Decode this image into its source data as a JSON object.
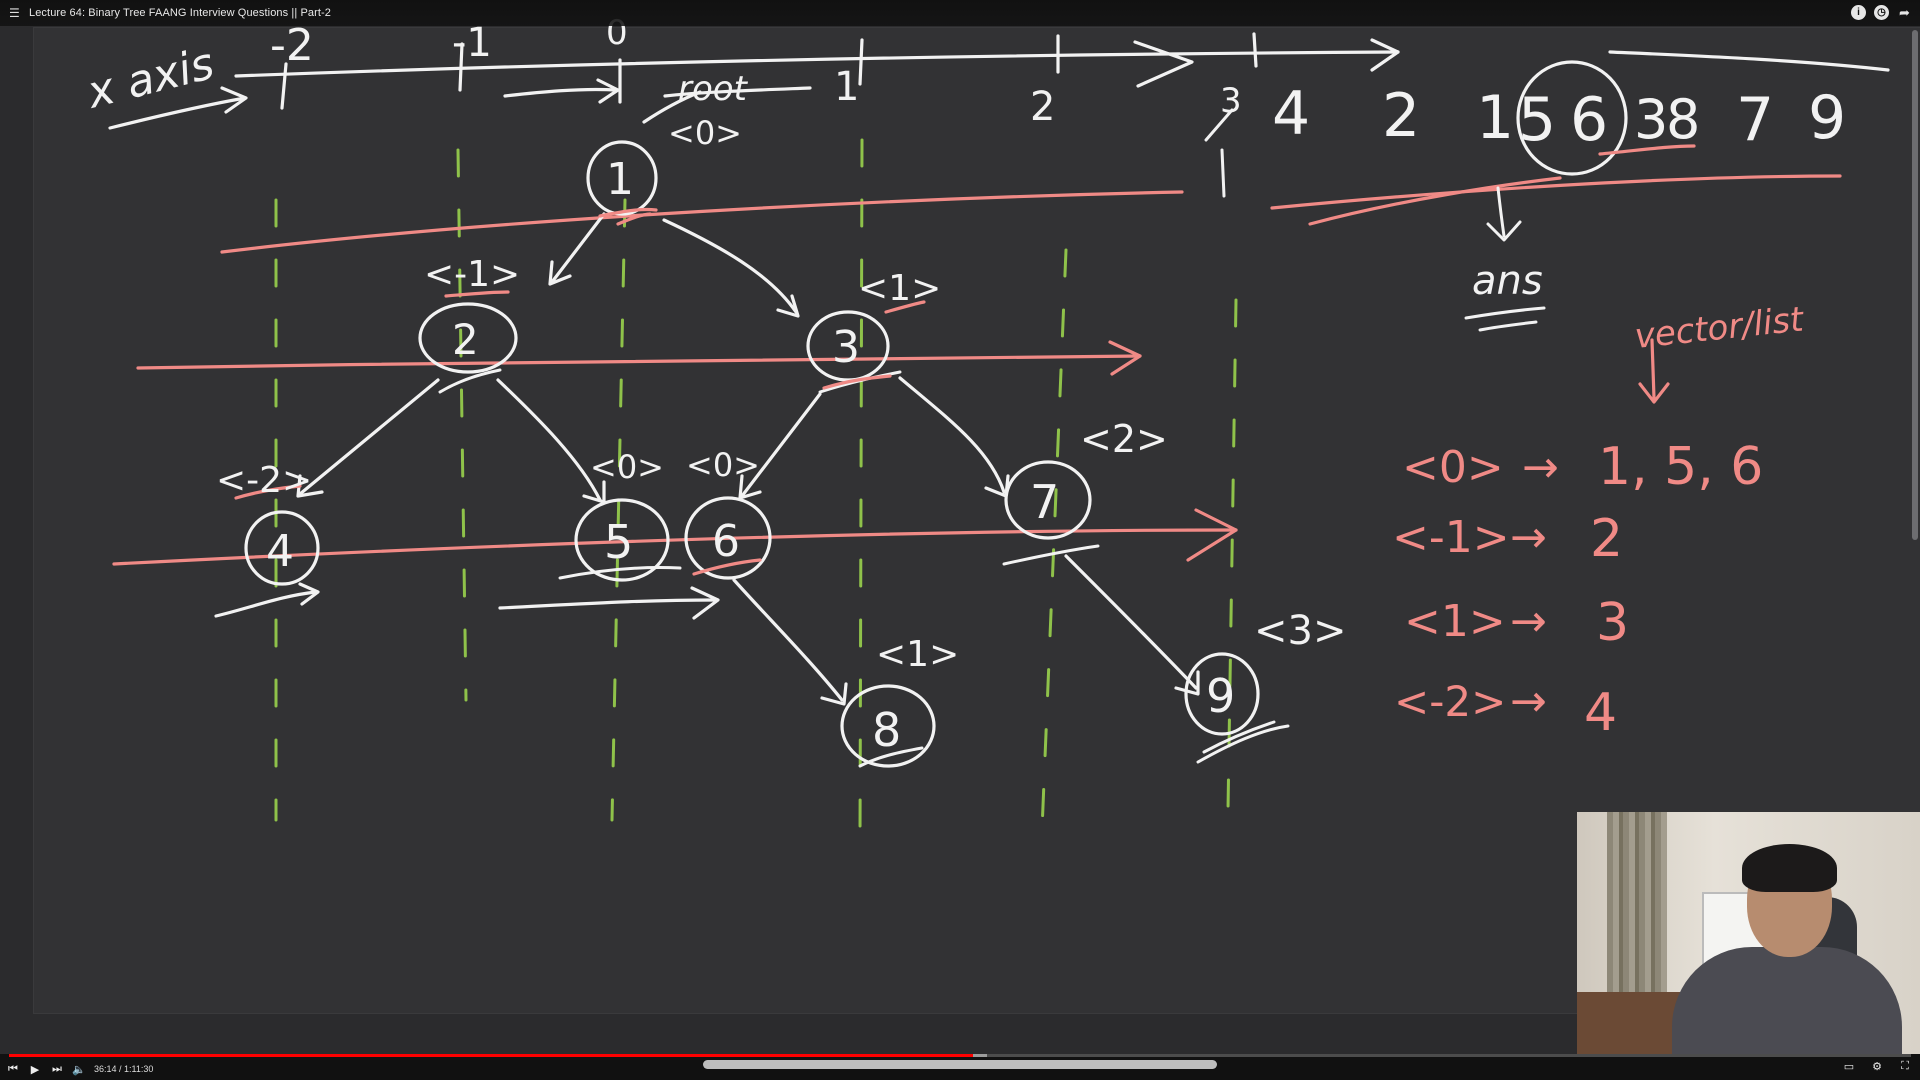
{
  "window": {
    "title": "Lecture 64: Binary Tree FAANG Interview Questions || Part-2",
    "playlist_icon": "playlist-icon",
    "buttons": [
      {
        "name": "info-icon",
        "glyph": "i"
      },
      {
        "name": "clock-icon",
        "glyph": "◷"
      },
      {
        "name": "share-icon",
        "glyph": "➦"
      }
    ]
  },
  "whiteboard": {
    "axis_label": "x axis",
    "axis_ticks": [
      "-2",
      "-1",
      "0",
      "1",
      "2",
      "3"
    ],
    "root_label": "root",
    "root_hd": "<0>",
    "nodes": [
      {
        "value": "1",
        "hd": ""
      },
      {
        "value": "2",
        "hd": "<-1>"
      },
      {
        "value": "3",
        "hd": "<1>"
      },
      {
        "value": "4",
        "hd": "<-2>"
      },
      {
        "value": "5",
        "hd": "<0>"
      },
      {
        "value": "6",
        "hd": "<0>"
      },
      {
        "value": "7",
        "hd": "<2>"
      },
      {
        "value": "8",
        "hd": "<1>"
      },
      {
        "value": "9",
        "hd": "<3>"
      }
    ],
    "answer_sequence": [
      "4",
      "2",
      "1",
      "5",
      "6",
      "3",
      "8",
      "7",
      "9"
    ],
    "answer_label": "ans",
    "map_label": "vector/list",
    "map_rows": [
      {
        "key": "<0>",
        "value": "1, 5, 6"
      },
      {
        "key": "<-1>",
        "value": "2"
      },
      {
        "key": "<1>",
        "value": "3"
      },
      {
        "key": "<-2>",
        "value": "4"
      }
    ]
  },
  "player": {
    "time": "36:14 / 1:11:30",
    "progress_fraction": 0.507,
    "buffer_fraction": 0.514,
    "controls": [
      "prev-icon",
      "play-icon",
      "next-icon",
      "volume-icon"
    ],
    "right_controls": [
      "captions-icon",
      "settings-icon",
      "fullscreen-icon"
    ]
  },
  "colors": {
    "chalk_white": "#f2f2f2",
    "chalk_pink": "#f08a86",
    "chalk_green": "#8fc24a",
    "board": "#323234",
    "progress": "#ff0000"
  }
}
